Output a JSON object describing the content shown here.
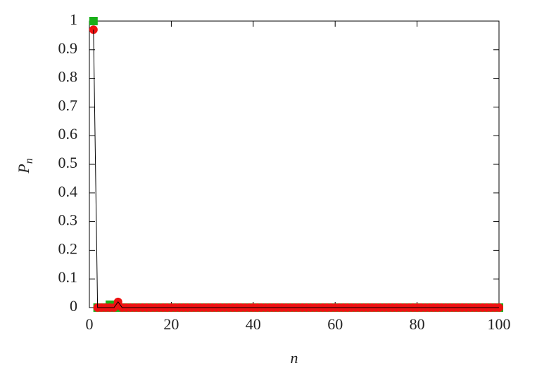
{
  "chart_data": {
    "type": "scatter",
    "xlabel": "n",
    "ylabel": {
      "main": "P",
      "sub": "n"
    },
    "x": [
      1,
      2,
      3,
      4,
      5,
      6,
      7,
      8,
      9,
      10,
      11,
      12,
      13,
      14,
      15,
      16,
      17,
      18,
      19,
      20,
      21,
      22,
      23,
      24,
      25,
      26,
      27,
      28,
      29,
      30,
      31,
      32,
      33,
      34,
      35,
      36,
      37,
      38,
      39,
      40,
      41,
      42,
      43,
      44,
      45,
      46,
      47,
      48,
      49,
      50,
      51,
      52,
      53,
      54,
      55,
      56,
      57,
      58,
      59,
      60,
      61,
      62,
      63,
      64,
      65,
      66,
      67,
      68,
      69,
      70,
      71,
      72,
      73,
      74,
      75,
      76,
      77,
      78,
      79,
      80,
      81,
      82,
      83,
      84,
      85,
      86,
      87,
      88,
      89,
      90,
      91,
      92,
      93,
      94,
      95,
      96,
      97,
      98,
      99,
      100
    ],
    "series": [
      {
        "color": "#1ab01a",
        "marker": "square",
        "values": [
          1,
          0,
          0,
          0,
          0.01,
          0,
          0,
          0,
          0,
          0,
          0,
          0,
          0,
          0,
          0,
          0,
          0,
          0,
          0,
          0,
          0,
          0,
          0,
          0,
          0,
          0,
          0,
          0,
          0,
          0,
          0,
          0,
          0,
          0,
          0,
          0,
          0,
          0,
          0,
          0,
          0,
          0,
          0,
          0,
          0,
          0,
          0,
          0,
          0,
          0,
          0,
          0,
          0,
          0,
          0,
          0,
          0,
          0,
          0,
          0,
          0,
          0,
          0,
          0,
          0,
          0,
          0,
          0,
          0,
          0,
          0,
          0,
          0,
          0,
          0,
          0,
          0,
          0,
          0,
          0,
          0,
          0,
          0,
          0,
          0,
          0,
          0,
          0,
          0,
          0,
          0,
          0,
          0,
          0,
          0,
          0,
          0,
          0,
          0,
          0
        ]
      },
      {
        "color": "#ee1111",
        "marker": "circle",
        "line_color": "#000000",
        "values": [
          0.97,
          0,
          0,
          0,
          0,
          0,
          0.02,
          0,
          0,
          0,
          0,
          0,
          0,
          0,
          0,
          0,
          0,
          0,
          0,
          0,
          0,
          0,
          0,
          0,
          0,
          0,
          0,
          0,
          0,
          0,
          0,
          0,
          0,
          0,
          0,
          0,
          0,
          0,
          0,
          0,
          0,
          0,
          0,
          0,
          0,
          0,
          0,
          0,
          0,
          0,
          0,
          0,
          0,
          0,
          0,
          0,
          0,
          0,
          0,
          0,
          0,
          0,
          0,
          0,
          0,
          0,
          0,
          0,
          0,
          0,
          0,
          0,
          0,
          0,
          0,
          0,
          0,
          0,
          0,
          0,
          0,
          0,
          0,
          0,
          0,
          0,
          0,
          0,
          0,
          0,
          0,
          0,
          0,
          0,
          0,
          0,
          0,
          0,
          0,
          0
        ]
      }
    ],
    "xlim": [
      0,
      100
    ],
    "ylim": [
      0,
      1
    ],
    "xticks": [
      0,
      20,
      40,
      60,
      80,
      100
    ],
    "yticks": [
      0,
      0.1,
      0.2,
      0.3,
      0.4,
      0.5,
      0.6,
      0.7,
      0.8,
      0.9,
      1
    ],
    "grid": false
  }
}
